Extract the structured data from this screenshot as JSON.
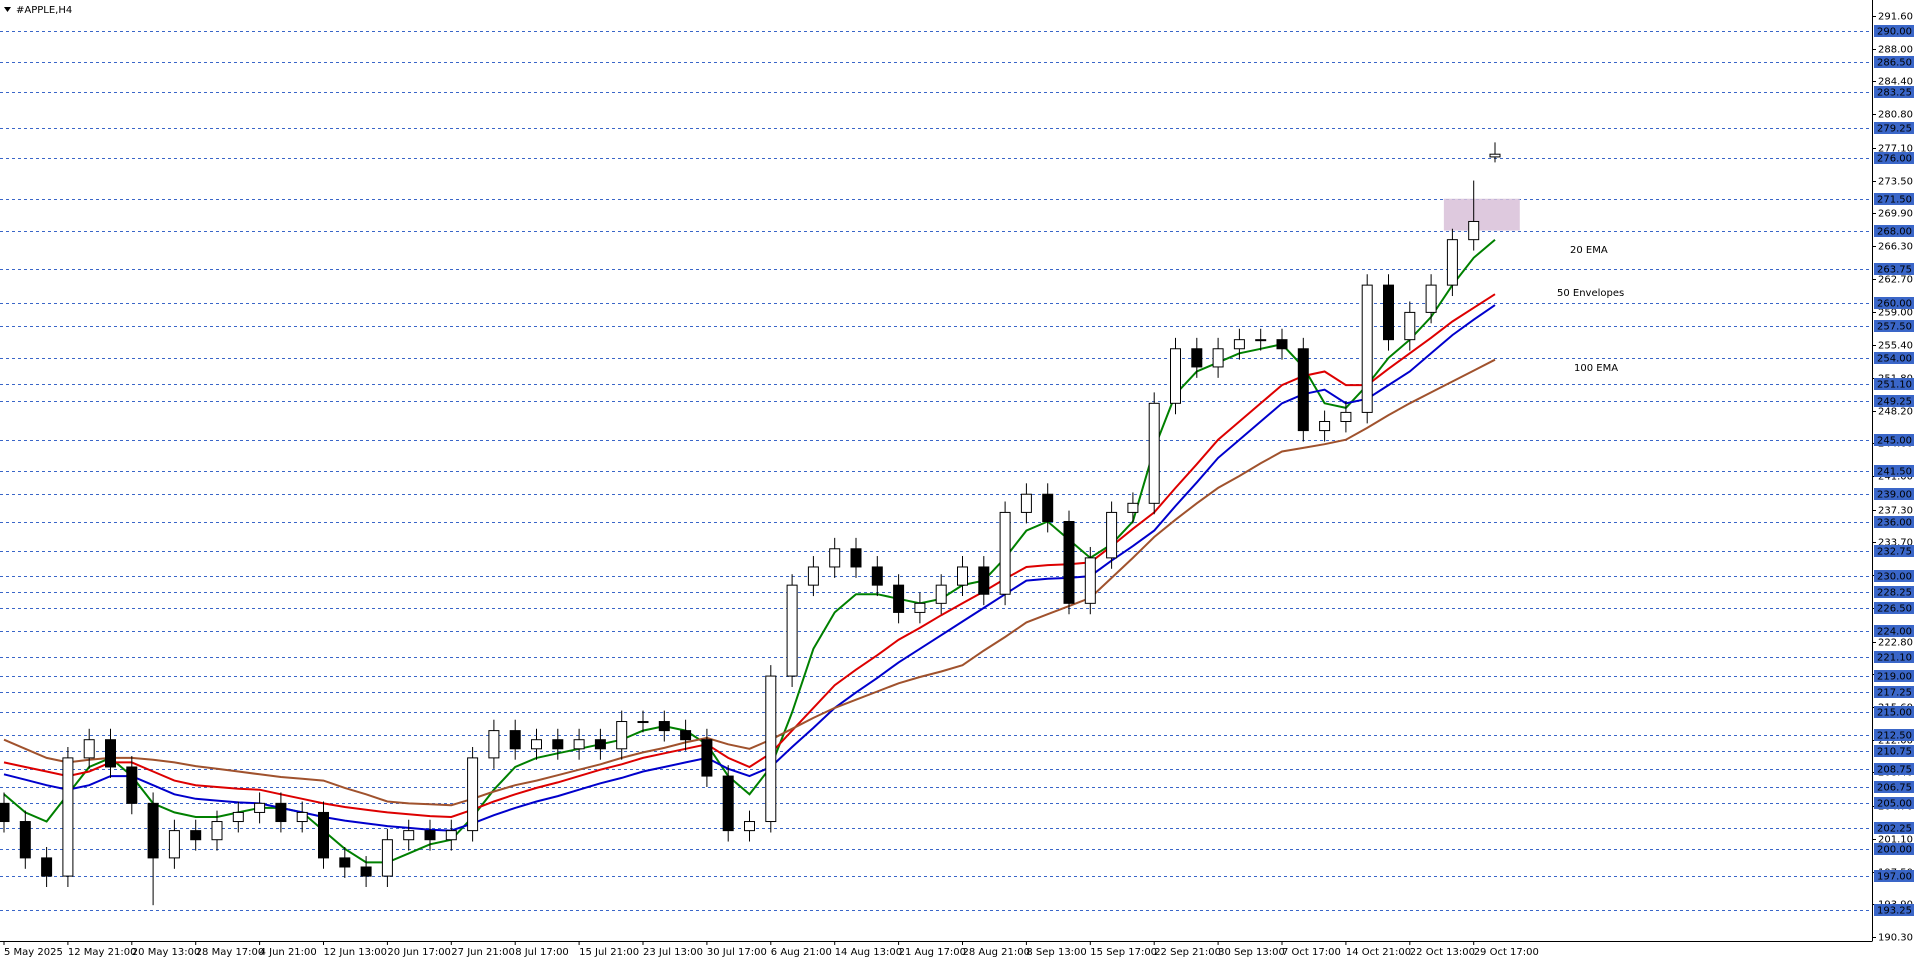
{
  "chart_data": {
    "type": "candlestick",
    "title": "#APPLE,H4",
    "x": [
      "5 May 2025",
      null,
      null,
      "12 May 21:00",
      null,
      null,
      "20 May 13:00",
      null,
      null,
      "28 May 17:00",
      null,
      null,
      "4 Jun 21:00",
      null,
      null,
      "12 Jun 13:00",
      null,
      null,
      "20 Jun 17:00",
      null,
      null,
      "27 Jun 21:00",
      null,
      null,
      "8 Jul 17:00",
      null,
      null,
      "15 Jul 21:00",
      null,
      null,
      "23 Jul 13:00",
      null,
      null,
      "30 Jul 17:00",
      null,
      null,
      "6 Aug 21:00",
      null,
      null,
      "14 Aug 13:00",
      null,
      null,
      "21 Aug 17:00",
      null,
      null,
      "28 Aug 21:00",
      null,
      null,
      "8 Sep 13:00",
      null,
      null,
      "15 Sep 17:00",
      null,
      null,
      "22 Sep 21:00",
      null,
      null,
      "30 Sep 13:00",
      null,
      null,
      "7 Oct 17:00",
      null,
      null,
      "14 Oct 21:00",
      null,
      null,
      "22 Oct 13:00",
      null,
      null,
      "29 Oct 17:00",
      null
    ],
    "open": [
      205,
      203,
      199,
      197,
      210,
      212,
      209,
      205,
      199,
      202,
      201,
      203,
      204,
      205,
      203,
      204,
      199,
      198,
      197,
      201,
      202,
      201,
      202,
      210,
      213,
      211,
      212,
      211,
      212,
      211,
      214,
      214,
      213,
      212,
      208,
      202,
      203,
      219,
      229,
      231,
      233,
      231,
      229,
      226,
      227,
      229,
      231,
      228,
      237,
      239,
      236,
      227,
      232,
      237,
      238,
      249,
      255,
      253,
      255,
      256,
      256,
      255,
      246,
      247,
      248,
      262,
      256,
      259,
      262,
      267,
      276.1
    ],
    "high": [
      206.2,
      204.2,
      200.2,
      211.2,
      213.2,
      213.2,
      210.2,
      206.2,
      203.2,
      203.2,
      204.2,
      205.2,
      206.2,
      206.2,
      205.2,
      205.2,
      200.2,
      199.2,
      202.2,
      203.2,
      203.2,
      203.2,
      211.2,
      214.2,
      214.2,
      213.2,
      213.2,
      213.2,
      213.2,
      215.2,
      215.2,
      215.2,
      214.2,
      213.2,
      209.2,
      204.2,
      220.2,
      230.2,
      232.2,
      234.2,
      234.2,
      232.2,
      230.2,
      228.2,
      230.2,
      232.2,
      232.2,
      238.2,
      240.2,
      240.2,
      237.2,
      233.2,
      238.2,
      239.2,
      250.2,
      256.2,
      256.2,
      256.2,
      257.2,
      257.2,
      257.2,
      256.2,
      248.2,
      249.2,
      263.2,
      263.2,
      260.2,
      263.2,
      268.2,
      273.5,
      277.7
    ],
    "low": [
      201.8,
      197.8,
      195.8,
      195.8,
      208.8,
      207.8,
      203.8,
      193.8,
      197.8,
      199.8,
      199.8,
      201.8,
      202.8,
      201.8,
      201.8,
      197.8,
      196.8,
      195.8,
      195.8,
      199.8,
      199.8,
      199.8,
      200.8,
      208.8,
      209.8,
      209.8,
      209.8,
      209.8,
      209.8,
      209.8,
      212.8,
      211.8,
      210.8,
      206.8,
      200.8,
      200.8,
      201.8,
      217.8,
      227.8,
      229.8,
      229.8,
      227.8,
      224.8,
      224.8,
      225.8,
      227.8,
      226.8,
      226.8,
      235.8,
      234.8,
      225.8,
      225.8,
      230.8,
      235.8,
      236.8,
      247.8,
      251.8,
      251.8,
      253.8,
      254.8,
      253.8,
      244.8,
      244.8,
      245.8,
      246.8,
      254.8,
      254.8,
      257.8,
      260.8,
      265.8,
      275.5
    ],
    "close": [
      203,
      199,
      197,
      210,
      212,
      209,
      205,
      199,
      202,
      201,
      203,
      204,
      205,
      203,
      204,
      199,
      198,
      197,
      201,
      202,
      201,
      202,
      210,
      213,
      211,
      212,
      211,
      212,
      211,
      214,
      214,
      213,
      212,
      208,
      202,
      203,
      219,
      229,
      231,
      233,
      231,
      229,
      226,
      227,
      229,
      231,
      228,
      237,
      239,
      236,
      227,
      232,
      237,
      238,
      249,
      255,
      253,
      255,
      256,
      256,
      255,
      246,
      247,
      248,
      262,
      256,
      259,
      262,
      267,
      269,
      276.4
    ],
    "up_color": "#ffffff",
    "down_color": "#000000",
    "indicators": [
      {
        "name": "20 EMA",
        "color": "#008000",
        "values": [
          206,
          204,
          203,
          206,
          209,
          210,
          208,
          205,
          204,
          203.5,
          203.5,
          204,
          204.5,
          204.5,
          204,
          202,
          200,
          198.5,
          198.5,
          199.5,
          200.5,
          201,
          203.5,
          206.5,
          209,
          210,
          210.5,
          211,
          211.5,
          212,
          213,
          213.5,
          213,
          211.5,
          208,
          206,
          209,
          215,
          222,
          226,
          228,
          228,
          227.5,
          227,
          227.5,
          229,
          229.5,
          232,
          235,
          236,
          234,
          232,
          233.5,
          236,
          244,
          250,
          252.5,
          253.5,
          254.5,
          255,
          255.5,
          253,
          249,
          248.5,
          251,
          254,
          256,
          258.5,
          262,
          265,
          267
        ]
      },
      {
        "name": "50 Envelopes",
        "color": "#0000cc",
        "upper_color": "#dd0000",
        "upper": [
          209.5,
          209,
          208.5,
          208,
          208.5,
          209.5,
          209.5,
          208.5,
          207.5,
          207,
          206.8,
          206.6,
          206.5,
          206,
          205.5,
          205,
          204.6,
          204.3,
          204,
          203.8,
          203.6,
          203.5,
          204.3,
          205.2,
          206,
          206.7,
          207.3,
          208,
          208.7,
          209.3,
          210,
          210.5,
          211,
          211.5,
          210,
          209,
          210.5,
          213,
          215.5,
          218,
          219.7,
          221.3,
          223,
          224.3,
          225.7,
          227,
          228.3,
          229.7,
          231,
          231.2,
          231.3,
          231.5,
          233.3,
          235.2,
          237,
          239.7,
          242.3,
          245,
          247,
          249,
          251,
          252,
          252.5,
          251,
          251,
          252.8,
          254.5,
          256.2,
          258,
          259.5,
          261
        ],
        "lower": [
          208.2,
          207.6,
          207,
          206.5,
          207,
          208,
          208,
          207,
          206,
          205.5,
          205.3,
          205.1,
          205,
          204.5,
          204,
          203.5,
          203.1,
          202.8,
          202.5,
          202.3,
          202.1,
          202,
          202.8,
          203.7,
          204.5,
          205.2,
          205.8,
          206.5,
          207.2,
          207.8,
          208.5,
          209,
          209.5,
          210,
          208.8,
          208,
          209,
          211.2,
          213.3,
          215.5,
          217.2,
          218.8,
          220.5,
          222,
          223.5,
          225,
          226.5,
          228,
          229.5,
          229.7,
          229.8,
          230,
          231.7,
          233.3,
          235,
          237.7,
          240.3,
          243,
          245,
          247,
          249,
          250,
          250.5,
          249,
          249.5,
          251,
          252.5,
          254.5,
          256.5,
          258.2,
          259.8
        ]
      },
      {
        "name": "100 EMA",
        "color": "#a0522d",
        "values": [
          212,
          211,
          210,
          209.5,
          209.8,
          210,
          210,
          209.8,
          209.5,
          209.1,
          208.8,
          208.5,
          208.2,
          207.9,
          207.7,
          207.5,
          206.7,
          206,
          205.2,
          205,
          204.9,
          204.8,
          205.5,
          206.3,
          207,
          207.5,
          208.1,
          208.7,
          209.3,
          210,
          210.6,
          211.1,
          211.7,
          212.2,
          211.5,
          211,
          212,
          213.2,
          214.4,
          215.5,
          216.4,
          217.3,
          218.2,
          218.9,
          219.5,
          220.2,
          221.8,
          223.3,
          224.9,
          225.8,
          226.7,
          227.6,
          229.8,
          232,
          234.3,
          236.2,
          238,
          239.7,
          241,
          242.4,
          243.7,
          244.1,
          244.5,
          245,
          246.3,
          247.7,
          249,
          250.2,
          251.4,
          252.6,
          253.8
        ]
      }
    ],
    "highlight_zone": {
      "low": 268,
      "high": 271.5,
      "color": "#d8bfd8"
    },
    "ylim": [
      190.3,
      291.6
    ],
    "yticks": [
      {
        "value": 291.6,
        "label": "291.60"
      },
      {
        "value": 288,
        "label": "288.00"
      },
      {
        "value": 284.4,
        "label": "284.40"
      },
      {
        "value": 280.8,
        "label": "280.80"
      },
      {
        "value": 277.1,
        "label": "277.10"
      },
      {
        "value": 273.5,
        "label": "273.50"
      },
      {
        "value": 269.9,
        "label": "269.90"
      },
      {
        "value": 266.3,
        "label": "266.30"
      },
      {
        "value": 262.7,
        "label": "262.70"
      },
      {
        "value": 259,
        "label": "259.00"
      },
      {
        "value": 255.4,
        "label": "255.40"
      },
      {
        "value": 251.8,
        "label": "251.80"
      },
      {
        "value": 248.2,
        "label": "248.20"
      },
      {
        "value": 244.6,
        "label": "244.60"
      },
      {
        "value": 241,
        "label": "241.00"
      },
      {
        "value": 237.3,
        "label": "237.30"
      },
      {
        "value": 233.7,
        "label": "233.70"
      },
      {
        "value": 230.1,
        "label": "230.10"
      },
      {
        "value": 226.5,
        "label": "226.50"
      },
      {
        "value": 222.8,
        "label": "222.80"
      },
      {
        "value": 219.2,
        "label": "219.20"
      },
      {
        "value": 215.6,
        "label": "215.60"
      },
      {
        "value": 212,
        "label": "212.00"
      },
      {
        "value": 208.4,
        "label": "208.40"
      },
      {
        "value": 204.7,
        "label": "204.70"
      },
      {
        "value": 201.1,
        "label": "201.10"
      },
      {
        "value": 197.5,
        "label": "197.50"
      },
      {
        "value": 193.9,
        "label": "193.90"
      },
      {
        "value": 190.3,
        "label": "190.30"
      }
    ],
    "levels": [
      {
        "value": 290,
        "label": "290.00"
      },
      {
        "value": 286.5,
        "label": "286.50"
      },
      {
        "value": 283.25,
        "label": "283.25"
      },
      {
        "value": 279.25,
        "label": "279.25"
      },
      {
        "value": 276,
        "label": "276.00"
      },
      {
        "value": 271.5,
        "label": "271.50"
      },
      {
        "value": 268,
        "label": "268.00"
      },
      {
        "value": 263.75,
        "label": "263.75"
      },
      {
        "value": 260,
        "label": "260.00"
      },
      {
        "value": 257.5,
        "label": "257.50"
      },
      {
        "value": 254,
        "label": "254.00"
      },
      {
        "value": 251.1,
        "label": "251.10"
      },
      {
        "value": 249.25,
        "label": "249.25"
      },
      {
        "value": 245,
        "label": "245.00"
      },
      {
        "value": 241.5,
        "label": "241.50"
      },
      {
        "value": 239,
        "label": "239.00"
      },
      {
        "value": 236,
        "label": "236.00"
      },
      {
        "value": 232.75,
        "label": "232.75"
      },
      {
        "value": 230,
        "label": "230.00"
      },
      {
        "value": 228.25,
        "label": "228.25"
      },
      {
        "value": 226.5,
        "label": "226.50"
      },
      {
        "value": 224,
        "label": "224.00"
      },
      {
        "value": 221.1,
        "label": "221.10"
      },
      {
        "value": 219,
        "label": "219.00"
      },
      {
        "value": 217.25,
        "label": "217.25"
      },
      {
        "value": 215,
        "label": "215.00"
      },
      {
        "value": 212.5,
        "label": "212.50"
      },
      {
        "value": 210.75,
        "label": "210.75"
      },
      {
        "value": 208.75,
        "label": "208.75"
      },
      {
        "value": 206.75,
        "label": "206.75"
      },
      {
        "value": 205,
        "label": "205.00"
      },
      {
        "value": 202.25,
        "label": "202.25"
      },
      {
        "value": 200,
        "label": "200.00"
      },
      {
        "value": 197,
        "label": "197.00"
      },
      {
        "value": 193.25,
        "label": "193.25"
      }
    ],
    "level_color": "#3a66c8",
    "grid": false
  }
}
